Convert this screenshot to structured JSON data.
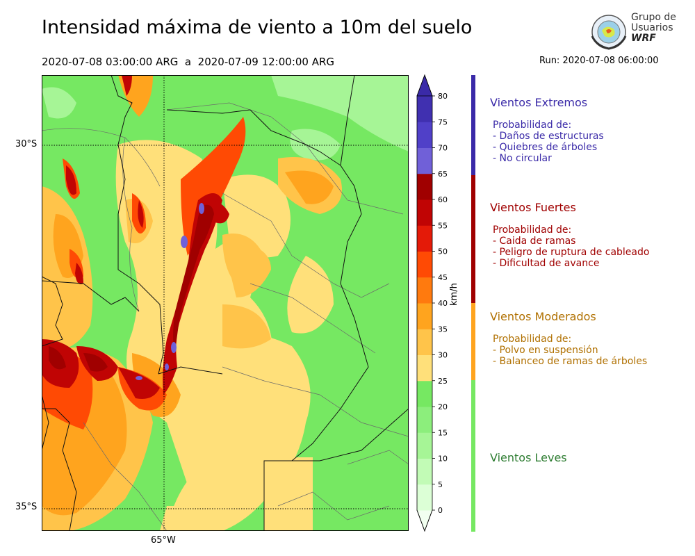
{
  "title": "Intensidad máxima de viento a 10m del suelo",
  "period": "2020-07-08 03:00:00 ARG  a  2020-07-09 12:00:00 ARG",
  "run": "Run: 2020-07-08 06:00:00",
  "logo": {
    "line1": "Grupo de",
    "line2": "Usuarios",
    "line3": "WRF",
    "icon": "globe-emblem-icon"
  },
  "axes": {
    "lat_labels": [
      "30°S",
      "35°S"
    ],
    "lon_labels": [
      "65°W"
    ]
  },
  "colorbar": {
    "units": "km/h",
    "ticks": [
      "0",
      "5",
      "10",
      "15",
      "20",
      "25",
      "30",
      "35",
      "40",
      "45",
      "50",
      "55",
      "60",
      "65",
      "70",
      "75",
      "80"
    ],
    "colors": [
      "#f2fff0",
      "#dcffd6",
      "#c2fbb6",
      "#a6f596",
      "#8cee7c",
      "#76e862",
      "#ffe07a",
      "#ffc44a",
      "#ffa41e",
      "#ff7a0e",
      "#ff4a04",
      "#e41a08",
      "#c00404",
      "#a00000",
      "#7060d8",
      "#5040c8",
      "#4030b0"
    ],
    "over_color": "#3a2aa8"
  },
  "classes": [
    {
      "title": "Vientos Extremos",
      "color": "#3a2aa8",
      "lines": [
        "Probabilidad de:",
        "- Daños de estructuras",
        "- Quiebres de árboles",
        "- No circular"
      ]
    },
    {
      "title": "Vientos Fuertes",
      "color": "#a00000",
      "lines": [
        "Probabilidad de:",
        "- Caida de ramas",
        "- Peligro de ruptura de cableado",
        "- Dificultad de avance"
      ]
    },
    {
      "title": "Vientos Moderados",
      "color": "#b07000",
      "bar_color": "#ffa41e",
      "lines": [
        "Probabilidad de:",
        "- Polvo en suspensión",
        "- Balanceo de ramas de árboles"
      ]
    },
    {
      "title": "Vientos Leves",
      "color": "#2e7d32",
      "bar_color": "#76e862",
      "lines": []
    }
  ]
}
